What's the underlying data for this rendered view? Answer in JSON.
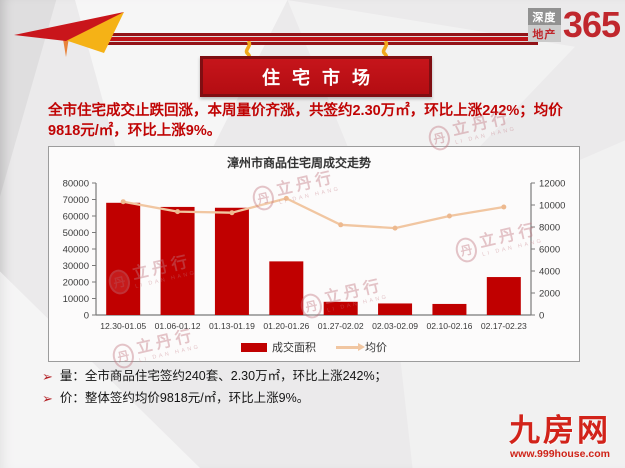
{
  "header": {
    "brand_logo": {
      "line1": "深度",
      "line2": "地产",
      "number": "365"
    },
    "banner_title": "住宅市场"
  },
  "summary_text": "全市住宅成交止跌回涨，本周量价齐涨，共签约2.30万㎡，环比上涨242%；均价9818元/㎡，环比上涨9%。",
  "chart_data": {
    "type": "bar",
    "title": "漳州市商品住宅周成交走势",
    "categories": [
      "12.30-01.05",
      "01.06-01.12",
      "01.13-01.19",
      "01.20-01.26",
      "01.27-02.02",
      "02.03-02.09",
      "02.10-02.16",
      "02.17-02.23"
    ],
    "series": [
      {
        "name": "成交面积",
        "type": "bar",
        "axis": "left",
        "color": "#c00000",
        "values": [
          68000,
          65500,
          65000,
          32500,
          8000,
          7000,
          6700,
          23000
        ]
      },
      {
        "name": "均价",
        "type": "line",
        "axis": "right",
        "color": "#f1c6a1",
        "marker_color": "#edb98f",
        "values": [
          10300,
          9400,
          9300,
          10600,
          8200,
          7900,
          9000,
          9818
        ]
      }
    ],
    "left_axis": {
      "min": 0,
      "max": 80000,
      "step": 10000
    },
    "right_axis": {
      "min": 0,
      "max": 12000,
      "step": 2000
    },
    "grid": false,
    "legend_position": "bottom"
  },
  "bullets": {
    "marker": "➢",
    "items": [
      "量：全市商品住宅签约240套、2.30万㎡，环比上涨242%；",
      "价：整体签约均价9818元/㎡，环比上涨9%。"
    ]
  },
  "watermark": {
    "seal_char": "丹",
    "name": "立丹行",
    "sub": "LI DAN HANG"
  },
  "footer_logo": {
    "name": "九房网",
    "url": "www.999house.com"
  }
}
